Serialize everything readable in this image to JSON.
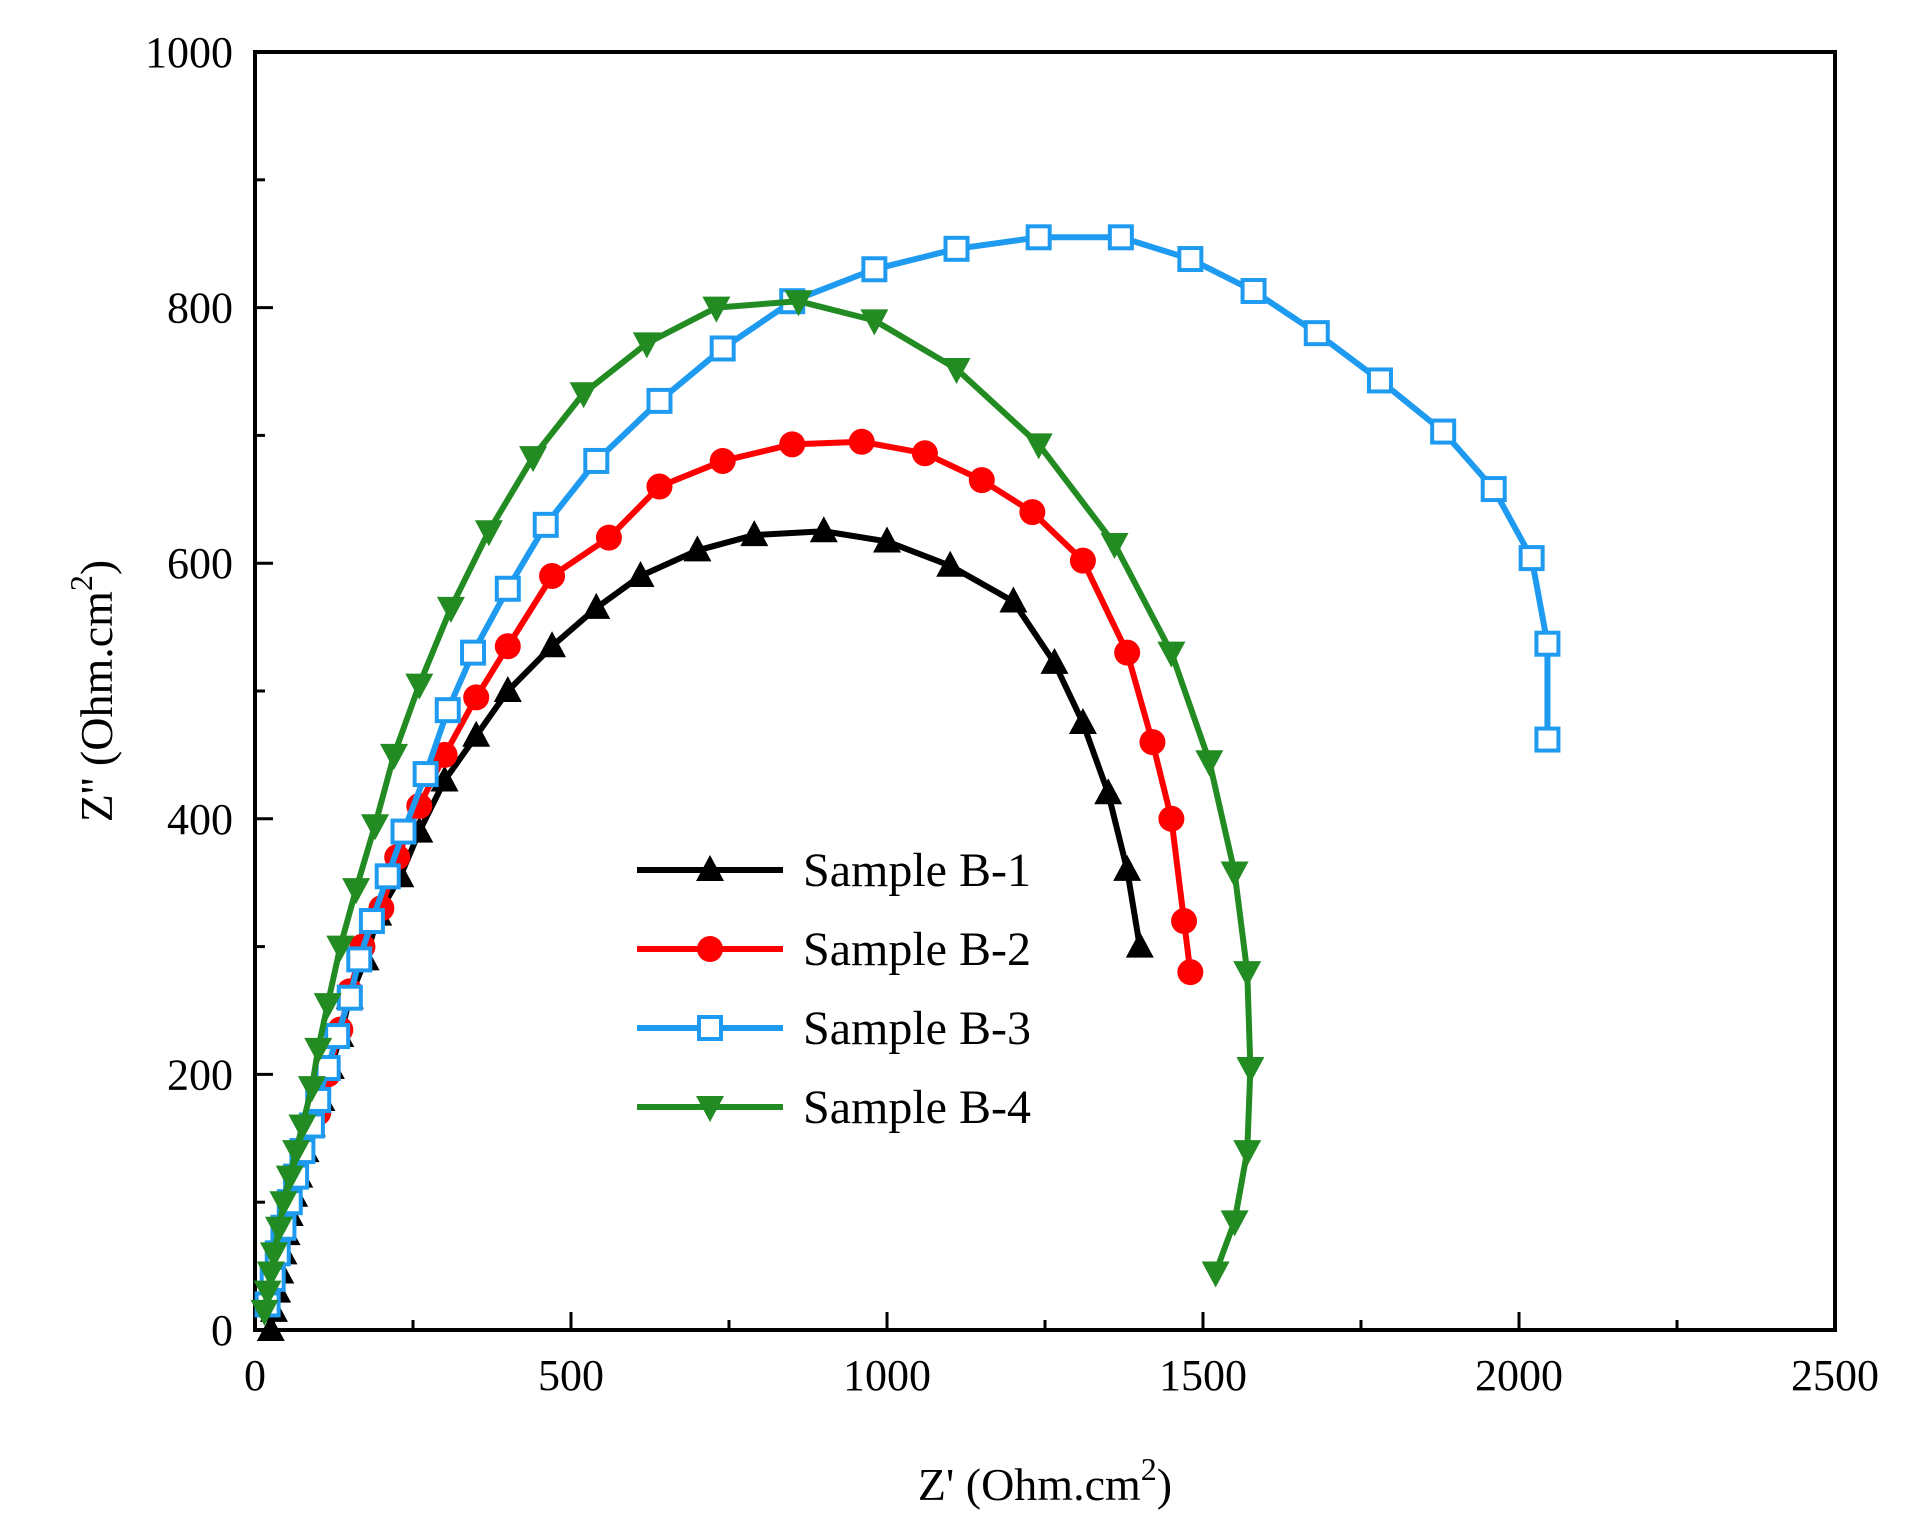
{
  "chart_data": {
    "type": "line",
    "title": "",
    "xlabel": "Z' (Ohm.cm",
    "xlabel_sup": "2",
    "xlabel_close": ")",
    "ylabel": "Z'' (Ohm.cm",
    "ylabel_sup": "2",
    "ylabel_close": ")",
    "xlim": [
      0,
      2500
    ],
    "ylim": [
      0,
      1000
    ],
    "xticks": [
      0,
      500,
      1000,
      1500,
      2000,
      2500
    ],
    "yticks": [
      0,
      200,
      400,
      600,
      800,
      1000
    ],
    "xtick_labels": [
      "0",
      "500",
      "1000",
      "1500",
      "2000",
      "2500"
    ],
    "ytick_labels": [
      "0",
      "200",
      "400",
      "600",
      "800",
      "1000"
    ],
    "legend_position": "center",
    "series": [
      {
        "name": "Sample B-1",
        "color": "#000000",
        "marker": "triangle-up",
        "points": [
          [
            25,
            0
          ],
          [
            30,
            15
          ],
          [
            35,
            30
          ],
          [
            40,
            45
          ],
          [
            45,
            60
          ],
          [
            50,
            75
          ],
          [
            55,
            90
          ],
          [
            62,
            105
          ],
          [
            70,
            120
          ],
          [
            80,
            140
          ],
          [
            90,
            160
          ],
          [
            105,
            180
          ],
          [
            120,
            205
          ],
          [
            135,
            230
          ],
          [
            150,
            260
          ],
          [
            175,
            290
          ],
          [
            195,
            325
          ],
          [
            230,
            355
          ],
          [
            260,
            390
          ],
          [
            300,
            430
          ],
          [
            350,
            465
          ],
          [
            400,
            500
          ],
          [
            470,
            535
          ],
          [
            540,
            565
          ],
          [
            610,
            590
          ],
          [
            700,
            610
          ],
          [
            790,
            622
          ],
          [
            900,
            625
          ],
          [
            1000,
            617
          ],
          [
            1100,
            598
          ],
          [
            1200,
            570
          ],
          [
            1265,
            522
          ],
          [
            1310,
            475
          ],
          [
            1350,
            420
          ],
          [
            1380,
            360
          ],
          [
            1400,
            300
          ]
        ]
      },
      {
        "name": "Sample B-2",
        "color": "#ff0000",
        "marker": "circle",
        "points": [
          [
            100,
            170
          ],
          [
            115,
            200
          ],
          [
            135,
            235
          ],
          [
            150,
            265
          ],
          [
            170,
            300
          ],
          [
            200,
            330
          ],
          [
            225,
            370
          ],
          [
            260,
            410
          ],
          [
            300,
            450
          ],
          [
            350,
            495
          ],
          [
            400,
            535
          ],
          [
            470,
            590
          ],
          [
            560,
            620
          ],
          [
            640,
            660
          ],
          [
            740,
            680
          ],
          [
            850,
            693
          ],
          [
            960,
            695
          ],
          [
            1060,
            686
          ],
          [
            1150,
            665
          ],
          [
            1230,
            640
          ],
          [
            1310,
            602
          ],
          [
            1380,
            530
          ],
          [
            1420,
            460
          ],
          [
            1450,
            400
          ],
          [
            1470,
            320
          ],
          [
            1480,
            280
          ]
        ]
      },
      {
        "name": "Sample B-3",
        "color": "#1e9bf0",
        "marker": "square-open",
        "points": [
          [
            20,
            20
          ],
          [
            28,
            40
          ],
          [
            36,
            60
          ],
          [
            45,
            80
          ],
          [
            55,
            100
          ],
          [
            65,
            120
          ],
          [
            75,
            140
          ],
          [
            90,
            160
          ],
          [
            100,
            180
          ],
          [
            115,
            205
          ],
          [
            130,
            230
          ],
          [
            150,
            260
          ],
          [
            165,
            290
          ],
          [
            185,
            320
          ],
          [
            210,
            355
          ],
          [
            235,
            390
          ],
          [
            270,
            435
          ],
          [
            305,
            485
          ],
          [
            345,
            530
          ],
          [
            400,
            580
          ],
          [
            460,
            630
          ],
          [
            540,
            680
          ],
          [
            640,
            727
          ],
          [
            740,
            768
          ],
          [
            850,
            805
          ],
          [
            980,
            830
          ],
          [
            1110,
            846
          ],
          [
            1240,
            855
          ],
          [
            1370,
            855
          ],
          [
            1480,
            838
          ],
          [
            1580,
            813
          ],
          [
            1680,
            780
          ],
          [
            1780,
            743
          ],
          [
            1880,
            703
          ],
          [
            1960,
            658
          ],
          [
            2020,
            604
          ],
          [
            2045,
            537
          ],
          [
            2045,
            462
          ]
        ]
      },
      {
        "name": "Sample B-4",
        "color": "#228b22",
        "marker": "triangle-down",
        "points": [
          [
            15,
            15
          ],
          [
            20,
            30
          ],
          [
            25,
            45
          ],
          [
            30,
            60
          ],
          [
            38,
            80
          ],
          [
            45,
            100
          ],
          [
            55,
            120
          ],
          [
            65,
            140
          ],
          [
            75,
            160
          ],
          [
            90,
            190
          ],
          [
            100,
            220
          ],
          [
            115,
            255
          ],
          [
            135,
            300
          ],
          [
            160,
            345
          ],
          [
            190,
            395
          ],
          [
            220,
            450
          ],
          [
            260,
            505
          ],
          [
            310,
            565
          ],
          [
            370,
            625
          ],
          [
            440,
            683
          ],
          [
            520,
            733
          ],
          [
            620,
            772
          ],
          [
            730,
            800
          ],
          [
            860,
            805
          ],
          [
            980,
            790
          ],
          [
            1110,
            752
          ],
          [
            1240,
            693
          ],
          [
            1360,
            615
          ],
          [
            1450,
            530
          ],
          [
            1510,
            445
          ],
          [
            1550,
            358
          ],
          [
            1570,
            280
          ],
          [
            1575,
            205
          ],
          [
            1570,
            140
          ],
          [
            1550,
            85
          ],
          [
            1520,
            45
          ]
        ]
      }
    ]
  }
}
